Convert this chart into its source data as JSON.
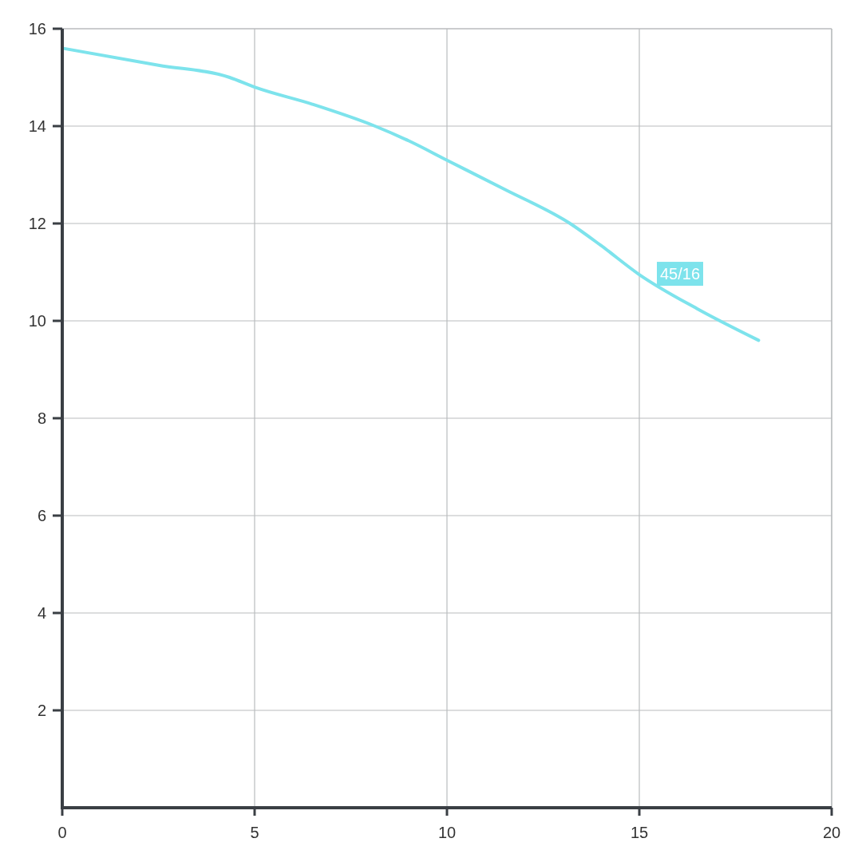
{
  "chart_data": {
    "type": "line",
    "xlim": [
      0,
      20
    ],
    "ylim": [
      0,
      16
    ],
    "xticks": [
      0,
      5,
      10,
      15,
      20
    ],
    "yticks": [
      2,
      4,
      6,
      8,
      10,
      12,
      14,
      16
    ],
    "grid": true,
    "line_style": "solid",
    "series": [
      {
        "name": "45/16",
        "color": "#7de3ec",
        "x": [
          0,
          2.5,
          4.35,
          5,
          6.5,
          8.13,
          9,
          10,
          11.5,
          13.2,
          14,
          15,
          16.5,
          18.1
        ],
        "values": [
          15.6,
          15.25,
          15.0,
          14.8,
          14.45,
          14.0,
          13.7,
          13.3,
          12.7,
          12.0,
          11.55,
          10.95,
          10.25,
          9.6
        ]
      }
    ]
  }
}
